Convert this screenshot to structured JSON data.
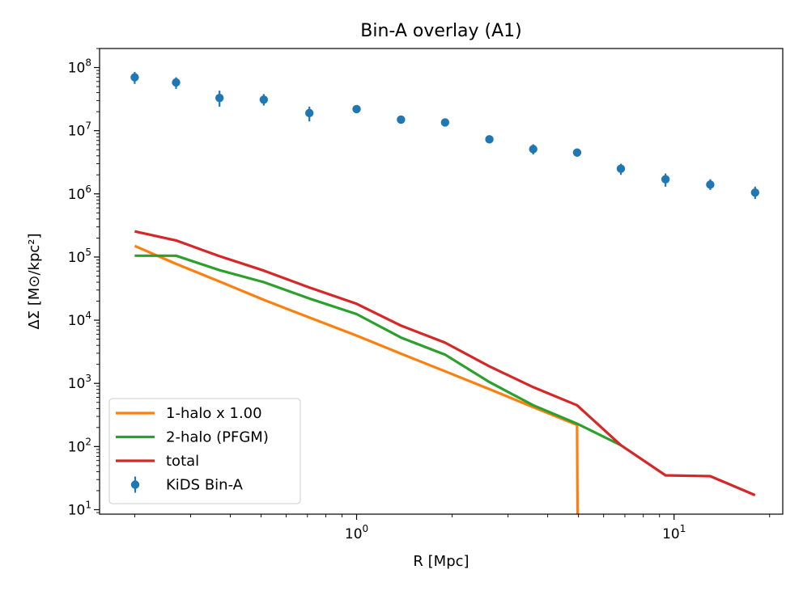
{
  "chart_data": {
    "type": "line",
    "title": "Bin-A overlay (A1)",
    "xlabel": "R [Mpc]",
    "ylabel": "ΔΣ [M⊙/kpc²]",
    "xscale": "log",
    "yscale": "log",
    "xlim": [
      0.155,
      22
    ],
    "ylim": [
      8.5,
      200000000
    ],
    "x_ticks": [
      {
        "value": 1,
        "label": "10^0"
      },
      {
        "value": 10,
        "label": "10^1"
      }
    ],
    "y_ticks": [
      {
        "value": 10,
        "label": "10^1"
      },
      {
        "value": 100,
        "label": "10^2"
      },
      {
        "value": 1000,
        "label": "10^3"
      },
      {
        "value": 10000,
        "label": "10^4"
      },
      {
        "value": 100000,
        "label": "10^5"
      },
      {
        "value": 1000000,
        "label": "10^6"
      },
      {
        "value": 10000000,
        "label": "10^7"
      },
      {
        "value": 100000000,
        "label": "10^8"
      }
    ],
    "grid": false,
    "legend_position": "lower-left",
    "series": [
      {
        "name": "1-halo x 1.00",
        "kind": "line",
        "color": "#ff7f0e",
        "x": [
          0.2,
          0.27,
          0.37,
          0.51,
          0.71,
          1.0,
          1.38,
          1.9,
          2.62,
          3.6,
          4.95,
          4.96,
          4.97
        ],
        "y": [
          150000,
          78000,
          41000,
          21000,
          11000,
          5700,
          2950,
          1550,
          810,
          420,
          220,
          20,
          8.5
        ]
      },
      {
        "name": "2-halo (PFGM)",
        "kind": "line",
        "color": "#2ca02c",
        "x": [
          0.2,
          0.27,
          0.37,
          0.51,
          0.71,
          1.0,
          1.38,
          1.9,
          2.62,
          3.6,
          4.95,
          6.8
        ],
        "y": [
          105000,
          105000,
          62000,
          40000,
          22000,
          12500,
          5300,
          2850,
          1050,
          450,
          230,
          105
        ]
      },
      {
        "name": "total",
        "kind": "line",
        "color": "#d62728",
        "x": [
          0.2,
          0.27,
          0.37,
          0.51,
          0.71,
          1.0,
          1.38,
          1.9,
          2.62,
          3.6,
          4.95,
          6.8,
          9.4,
          13,
          18
        ],
        "y": [
          255000,
          183000,
          103000,
          61000,
          33000,
          18200,
          8200,
          4400,
          1860,
          870,
          450,
          105,
          35,
          34,
          17
        ]
      },
      {
        "name": "KiDS Bin-A",
        "kind": "errorbar",
        "color": "#1f77b4",
        "x": [
          0.2,
          0.27,
          0.37,
          0.51,
          0.71,
          1.0,
          1.38,
          1.9,
          2.62,
          3.6,
          4.95,
          6.8,
          9.4,
          13,
          18
        ],
        "y": [
          70000000,
          58000000,
          33000000,
          31000000,
          19000000,
          22000000,
          15000000,
          13500000,
          7300000,
          5100000,
          4500000,
          2500000,
          1700000,
          1400000,
          1050000
        ],
        "yerr_low": [
          55000000,
          46000000,
          24000000,
          25000000,
          14000000,
          19000000,
          13000000,
          12500000,
          6300000,
          4200000,
          3900000,
          2000000,
          1300000,
          1150000,
          830000
        ],
        "yerr_high": [
          85000000,
          70000000,
          43000000,
          38000000,
          24000000,
          25000000,
          17000000,
          14500000,
          8400000,
          6100000,
          5100000,
          3000000,
          2100000,
          1700000,
          1300000
        ]
      }
    ]
  }
}
